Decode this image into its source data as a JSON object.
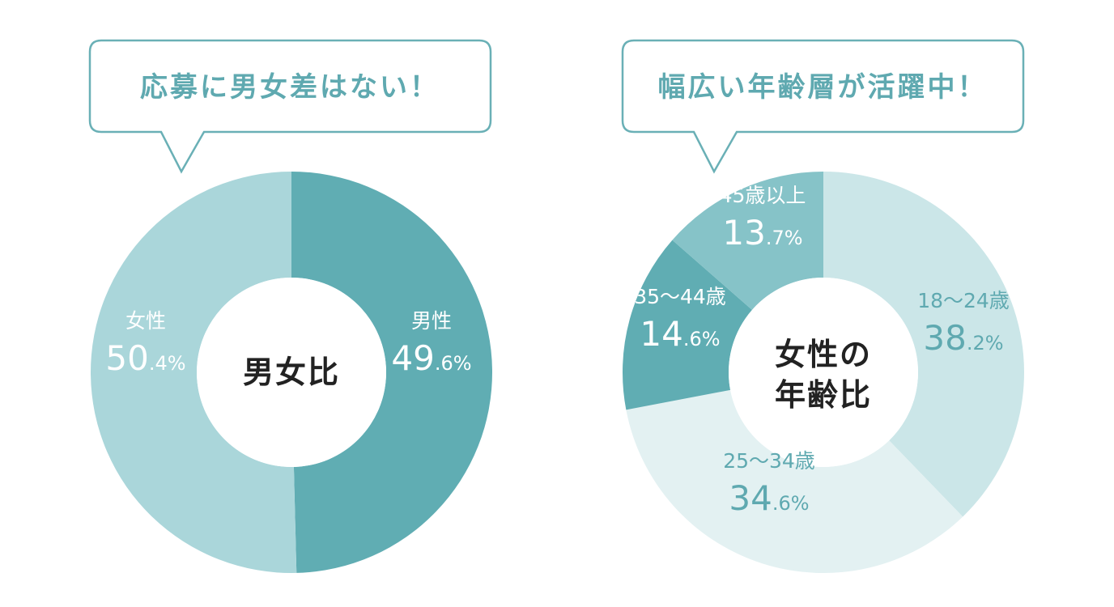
{
  "colors": {
    "accent": "#5fa9b0",
    "bubble_border": "#6ab0b6",
    "center_text": "#222222",
    "white": "#ffffff"
  },
  "chart_data": [
    {
      "type": "pie",
      "style": "donut",
      "bubble": "応募に男女差はない！",
      "center_label": "男女比",
      "segments": [
        {
          "label": "男性",
          "value": 49.6,
          "int": "49",
          "dec": ".6%",
          "color": "#60adb3",
          "text_color": "#ffffff"
        },
        {
          "label": "女性",
          "value": 50.4,
          "int": "50",
          "dec": ".4%",
          "color": "#aad6da",
          "text_color": "#ffffff"
        }
      ]
    },
    {
      "type": "pie",
      "style": "donut",
      "bubble": "幅広い年齢層が活躍中！",
      "center_label": [
        "女性の",
        "年齢比"
      ],
      "segments": [
        {
          "label": "18〜24歳",
          "value": 38.2,
          "int": "38",
          "dec": ".2%",
          "color": "#cbe6e8",
          "text_color": "#5fa9b0"
        },
        {
          "label": "25〜34歳",
          "value": 34.6,
          "int": "34",
          "dec": ".6%",
          "color": "#e3f1f2",
          "text_color": "#5fa9b0"
        },
        {
          "label": "35〜44歳",
          "value": 14.6,
          "int": "14",
          "dec": ".6%",
          "color": "#60adb3",
          "text_color": "#ffffff"
        },
        {
          "label": "45歳以上",
          "value": 13.7,
          "int": "13",
          "dec": ".7%",
          "color": "#86c3c8",
          "text_color": "#ffffff"
        }
      ]
    }
  ]
}
